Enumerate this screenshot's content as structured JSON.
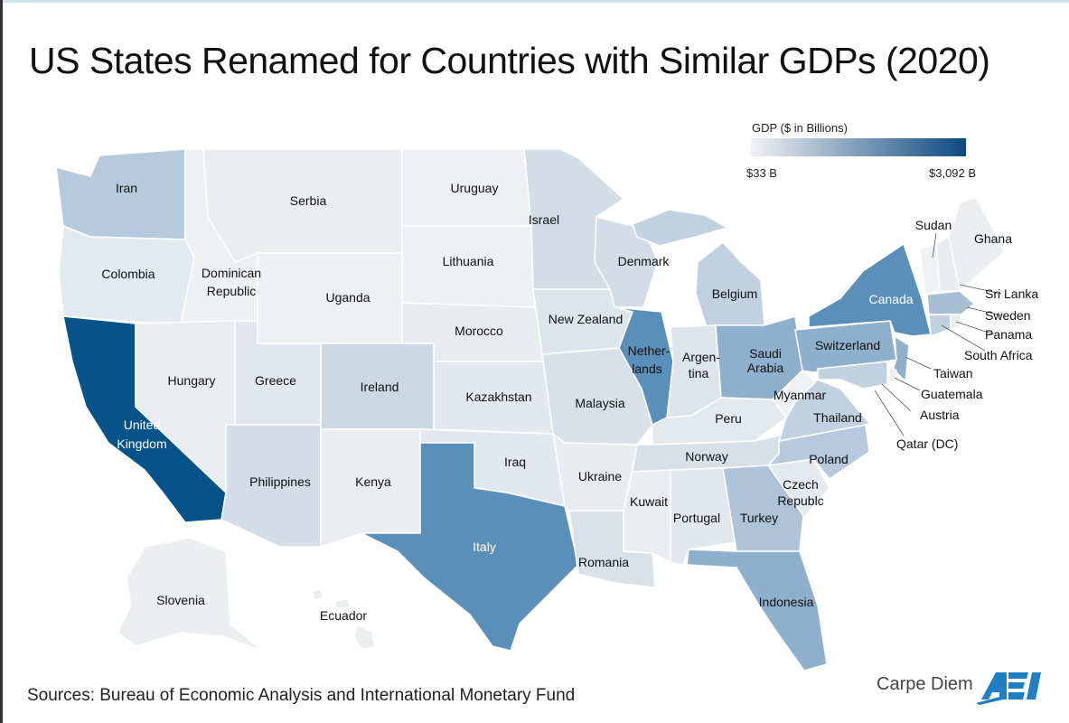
{
  "title": "US States Renamed for Countries with Similar GDPs (2020)",
  "legend": {
    "title": "GDP ($ in Billions)",
    "min_label": "$33 B",
    "max_label": "$3,092 B",
    "color_low": "#f1f1f3",
    "color_high": "#0d4a80"
  },
  "states": {
    "WA": {
      "country": "Iran",
      "fill": "#b7c9dc"
    },
    "OR": {
      "country": "Colombia",
      "fill": "#e3e9f0"
    },
    "CA": {
      "country_1": "United",
      "country_2": "Kingdom",
      "fill": "#06538a"
    },
    "ID": {
      "country_1": "Dominican",
      "country_2": "Republic",
      "fill": "#eef0f2"
    },
    "MT": {
      "country": "Serbia",
      "fill": "#ecedef"
    },
    "NV": {
      "country": "Hungary",
      "fill": "#eaedf0"
    },
    "UT": {
      "country": "Greece",
      "fill": "#e1e7ed"
    },
    "AZ": {
      "country": "Philippines",
      "fill": "#d3dde8"
    },
    "WY": {
      "country": "Uganda",
      "fill": "#eef0f2"
    },
    "CO": {
      "country": "Ireland",
      "fill": "#ccd8e4"
    },
    "NM": {
      "country": "Kenya",
      "fill": "#ebedf0"
    },
    "ND": {
      "country": "Uruguay",
      "fill": "#eef0f2"
    },
    "SD": {
      "country": "Lithuania",
      "fill": "#eef0f2"
    },
    "NE": {
      "country": "Morocco",
      "fill": "#e9ecef"
    },
    "KS": {
      "country": "Kazakhstan",
      "fill": "#e3e8ee"
    },
    "OK": {
      "country": "Iraq",
      "fill": "#e3e8ee"
    },
    "TX": {
      "country": "Italy",
      "fill": "#5a8fba"
    },
    "MN": {
      "country": "Israel",
      "fill": "#d3dde8"
    },
    "IA": {
      "country": "New Zealand",
      "fill": "#dde4ec"
    },
    "MO": {
      "country": "Malaysia",
      "fill": "#d8e1ea"
    },
    "AR": {
      "country": "Ukraine",
      "fill": "#e9ecef"
    },
    "LA": {
      "country": "Romania",
      "fill": "#d9e1ea"
    },
    "WI": {
      "country": "Denmark",
      "fill": "#d3dde8"
    },
    "IL": {
      "country_1": "Nether-",
      "country_2": "lands",
      "fill": "#5a8fba"
    },
    "MI": {
      "country": "Belgium",
      "fill": "#c2d1e0"
    },
    "IN": {
      "country_1": "Argen-",
      "country_2": "tina",
      "fill": "#dde4ec"
    },
    "OH": {
      "country_1": "Saudi",
      "country_2": "Arabia",
      "fill": "#8fb0cd"
    },
    "KY": {
      "country": "Peru",
      "fill": "#e4e9ee"
    },
    "TN": {
      "country": "Norway",
      "fill": "#d7e0e9"
    },
    "MS": {
      "country": "Kuwait",
      "fill": "#eaedf0"
    },
    "AL": {
      "country": "Portugal",
      "fill": "#e1e7ed"
    },
    "GA": {
      "country": "Turkey",
      "fill": "#aec3d8"
    },
    "FL": {
      "country": "Indonesia",
      "fill": "#8fb0cd"
    },
    "SC": {
      "country_1": "Czech",
      "country_2": "Republc",
      "fill": "#e4e9ee"
    },
    "NC": {
      "country": "Poland",
      "fill": "#b7c9dc"
    },
    "VA": {
      "country": "Thailand",
      "fill": "#c2d1e0"
    },
    "WV": {
      "country": "Myanmar",
      "fill": "#f0f1f3"
    },
    "PA": {
      "country": "Switzerland",
      "fill": "#8fb0cd"
    },
    "NY": {
      "country": "Canada",
      "fill": "#5a8fba"
    },
    "VT": {
      "country": "Sudan",
      "fill": "#f0f1f3"
    },
    "ME": {
      "country": "Ghana",
      "fill": "#eceef0"
    },
    "NH": {
      "country": "Sri Lanka",
      "fill": "#e9ecef"
    },
    "MA": {
      "country": "Sweden",
      "fill": "#a7bfd5"
    },
    "RI": {
      "country": "Panama",
      "fill": "#eaedf0"
    },
    "CT": {
      "country": "South Africa",
      "fill": "#c2d1e0"
    },
    "NJ": {
      "country": "Taiwan",
      "fill": "#8fb0cd"
    },
    "DE": {
      "country": "Guatemala",
      "fill": "#eceef0"
    },
    "MD": {
      "country": "Austria",
      "fill": "#c2d1e0"
    },
    "DC": {
      "country": "Qatar (DC)",
      "fill": "#e6eaee"
    },
    "AK": {
      "country": "Slovenia",
      "fill": "#eceef0"
    },
    "HI": {
      "country": "Ecuador",
      "fill": "#eceef0"
    }
  },
  "source": "Sources: Bureau of Economic Analysis and International Monetary Fund",
  "brand": {
    "name": "Carpe Diem",
    "logo_text": "AEI",
    "logo_color": "#1f7fc4"
  }
}
